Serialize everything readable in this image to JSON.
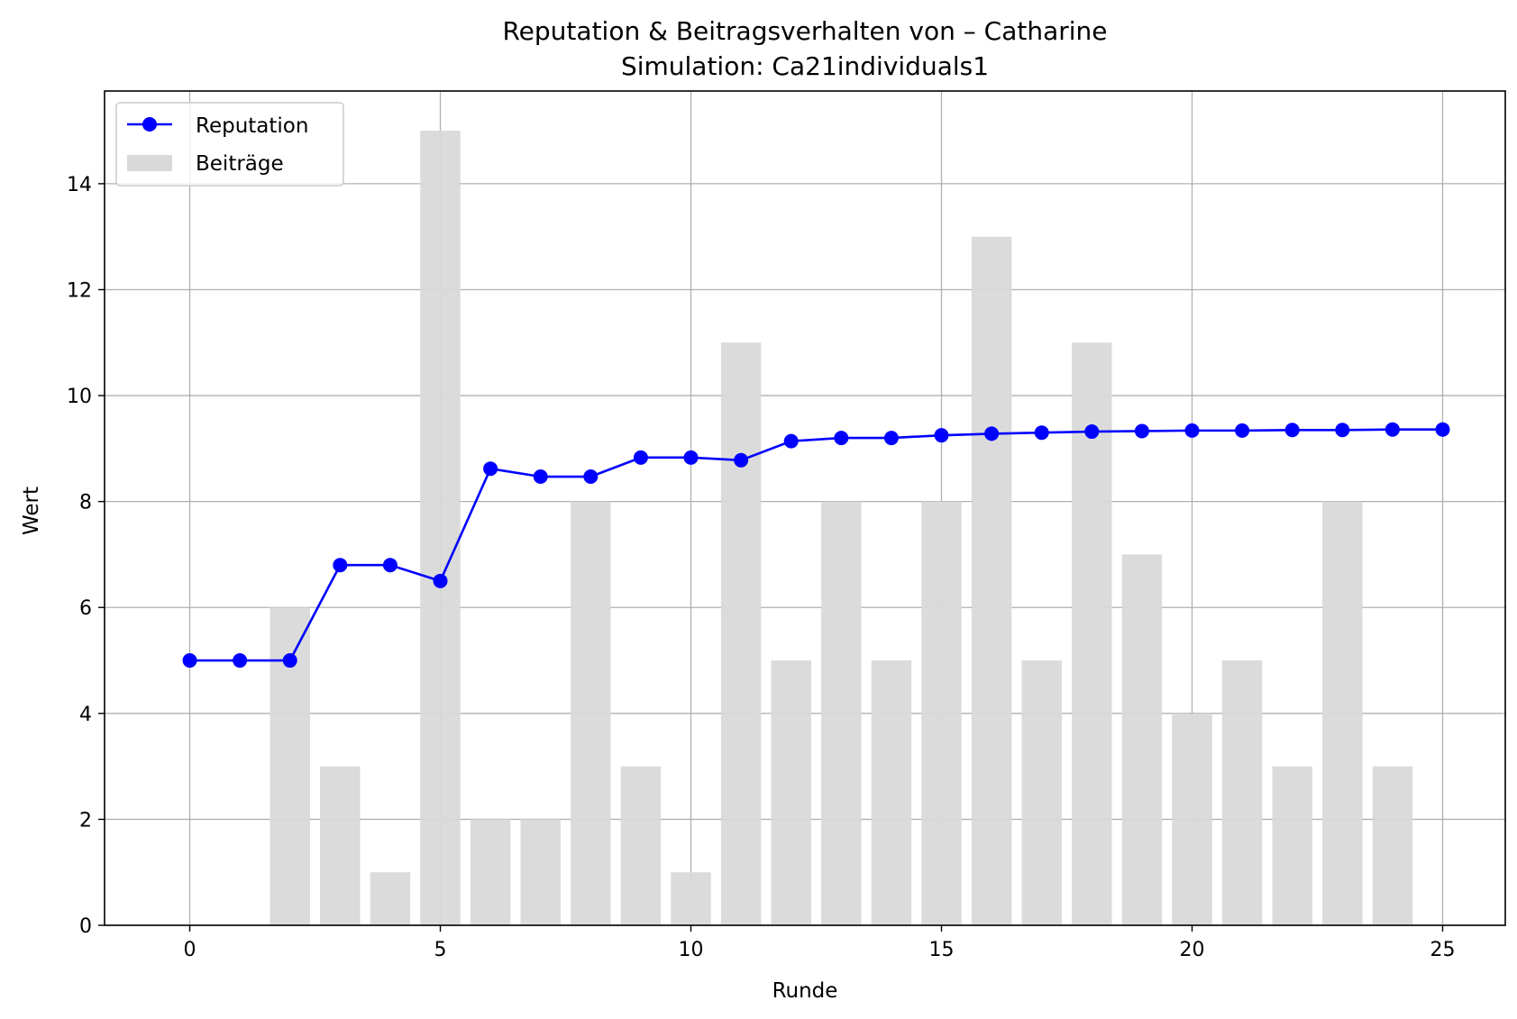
{
  "chart_data": {
    "type": "bar+line",
    "title": "Reputation & Beitragsverhalten von – Catharine",
    "subtitle": "Simulation: Ca21individuals1",
    "xlabel": "Runde",
    "ylabel": "Wert",
    "xlim": [
      -1.7,
      26.25
    ],
    "ylim": [
      0,
      15.75
    ],
    "x_ticks": [
      0,
      5,
      10,
      15,
      20,
      25
    ],
    "y_ticks": [
      0,
      2,
      4,
      6,
      8,
      10,
      12,
      14
    ],
    "grid": true,
    "legend_position": "top-left",
    "x": [
      0,
      1,
      2,
      3,
      4,
      5,
      6,
      7,
      8,
      9,
      10,
      11,
      12,
      13,
      14,
      15,
      16,
      17,
      18,
      19,
      20,
      21,
      22,
      23,
      24,
      25
    ],
    "series": [
      {
        "name": "Reputation",
        "kind": "line",
        "color": "#0000ff",
        "values": [
          5.0,
          5.0,
          5.0,
          6.8,
          6.8,
          6.5,
          8.62,
          8.47,
          8.47,
          8.83,
          8.83,
          8.78,
          9.14,
          9.2,
          9.2,
          9.25,
          9.28,
          9.3,
          9.32,
          9.33,
          9.34,
          9.34,
          9.35,
          9.35,
          9.36,
          9.36
        ]
      },
      {
        "name": "Beiträge",
        "kind": "bar",
        "color": "#d9d9d9",
        "values": [
          0,
          0,
          6,
          3,
          1,
          15,
          2,
          2,
          8,
          3,
          1,
          11,
          5,
          8,
          5,
          8,
          13,
          5,
          11,
          7,
          4,
          5,
          3,
          8,
          3,
          0
        ]
      }
    ]
  }
}
